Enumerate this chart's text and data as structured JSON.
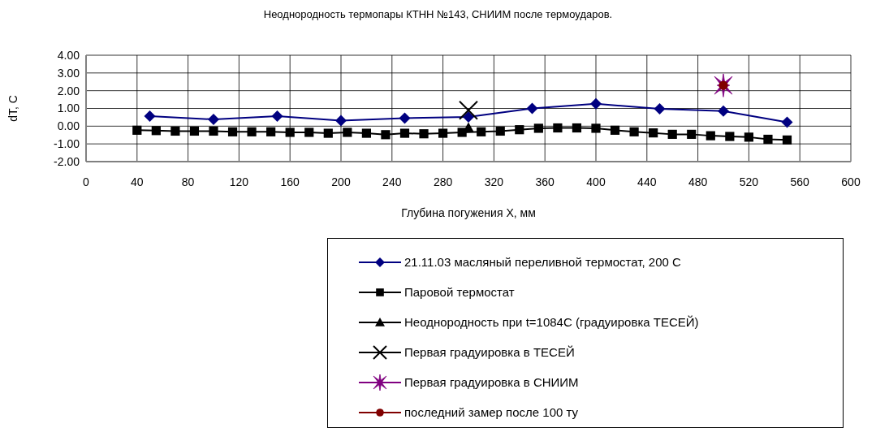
{
  "chart_data": {
    "type": "line",
    "title": "Неоднородность термопары КТНН №143,  СНИИМ после термоударов.",
    "xlabel": "Глубина погужения X, мм",
    "ylabel": "dT, C",
    "xlim": [
      0,
      600
    ],
    "xticks": [
      0,
      40,
      80,
      120,
      160,
      200,
      240,
      280,
      320,
      360,
      400,
      440,
      480,
      520,
      560,
      600
    ],
    "ylim": [
      -2,
      4
    ],
    "yticks": [
      {
        "value": -2,
        "label": "-2.00"
      },
      {
        "value": -1,
        "label": "-1.00"
      },
      {
        "value": 0,
        "label": "0.00"
      },
      {
        "value": 1,
        "label": "1.00"
      },
      {
        "value": 2,
        "label": "2.00"
      },
      {
        "value": 3,
        "label": "3.00"
      },
      {
        "value": 4,
        "label": "4.00"
      }
    ],
    "grid": true,
    "legend": "bottom right",
    "line_style": "solid",
    "series": [
      {
        "name": "21.11.03 масляный переливной термостат, 200 С",
        "color": "#000080",
        "marker": "diamond",
        "x": [
          50,
          100,
          150,
          200,
          250,
          300,
          350,
          400,
          450,
          500,
          550
        ],
        "values": [
          0.57,
          0.38,
          0.57,
          0.31,
          0.45,
          0.52,
          1.0,
          1.26,
          0.98,
          0.85,
          0.22
        ]
      },
      {
        "name": "Паровой термостат",
        "color": "#000000",
        "marker": "square",
        "x": [
          40,
          55,
          70,
          85,
          100,
          115,
          130,
          145,
          160,
          175,
          190,
          205,
          220,
          235,
          250,
          265,
          280,
          295,
          310,
          325,
          340,
          355,
          370,
          385,
          400,
          415,
          430,
          445,
          460,
          475,
          490,
          505,
          520,
          535,
          550
        ],
        "values": [
          -0.23,
          -0.25,
          -0.28,
          -0.28,
          -0.28,
          -0.32,
          -0.32,
          -0.32,
          -0.35,
          -0.35,
          -0.4,
          -0.35,
          -0.4,
          -0.48,
          -0.4,
          -0.43,
          -0.4,
          -0.35,
          -0.32,
          -0.28,
          -0.2,
          -0.12,
          -0.1,
          -0.1,
          -0.12,
          -0.23,
          -0.32,
          -0.38,
          -0.46,
          -0.46,
          -0.54,
          -0.58,
          -0.62,
          -0.74,
          -0.78
        ]
      },
      {
        "name": "Неоднородность при t=1084C (градуировка  ТЕСЕЙ)",
        "color": "#000000",
        "marker": "triangle",
        "x": [
          300
        ],
        "values": [
          -0.1
        ]
      },
      {
        "name": "Первая градуировка в ТЕСЕЙ",
        "color": "#000000",
        "marker": "cross",
        "x": [
          300
        ],
        "values": [
          0.9
        ]
      },
      {
        "name": "Первая градуировка в СНИИМ",
        "color": "#800080",
        "marker": "star",
        "x": [
          500
        ],
        "values": [
          2.3
        ]
      },
      {
        "name": "последний замер после 100 ту",
        "color": "#800000",
        "marker": "circle",
        "x": [
          500
        ],
        "values": [
          2.3
        ]
      }
    ]
  }
}
